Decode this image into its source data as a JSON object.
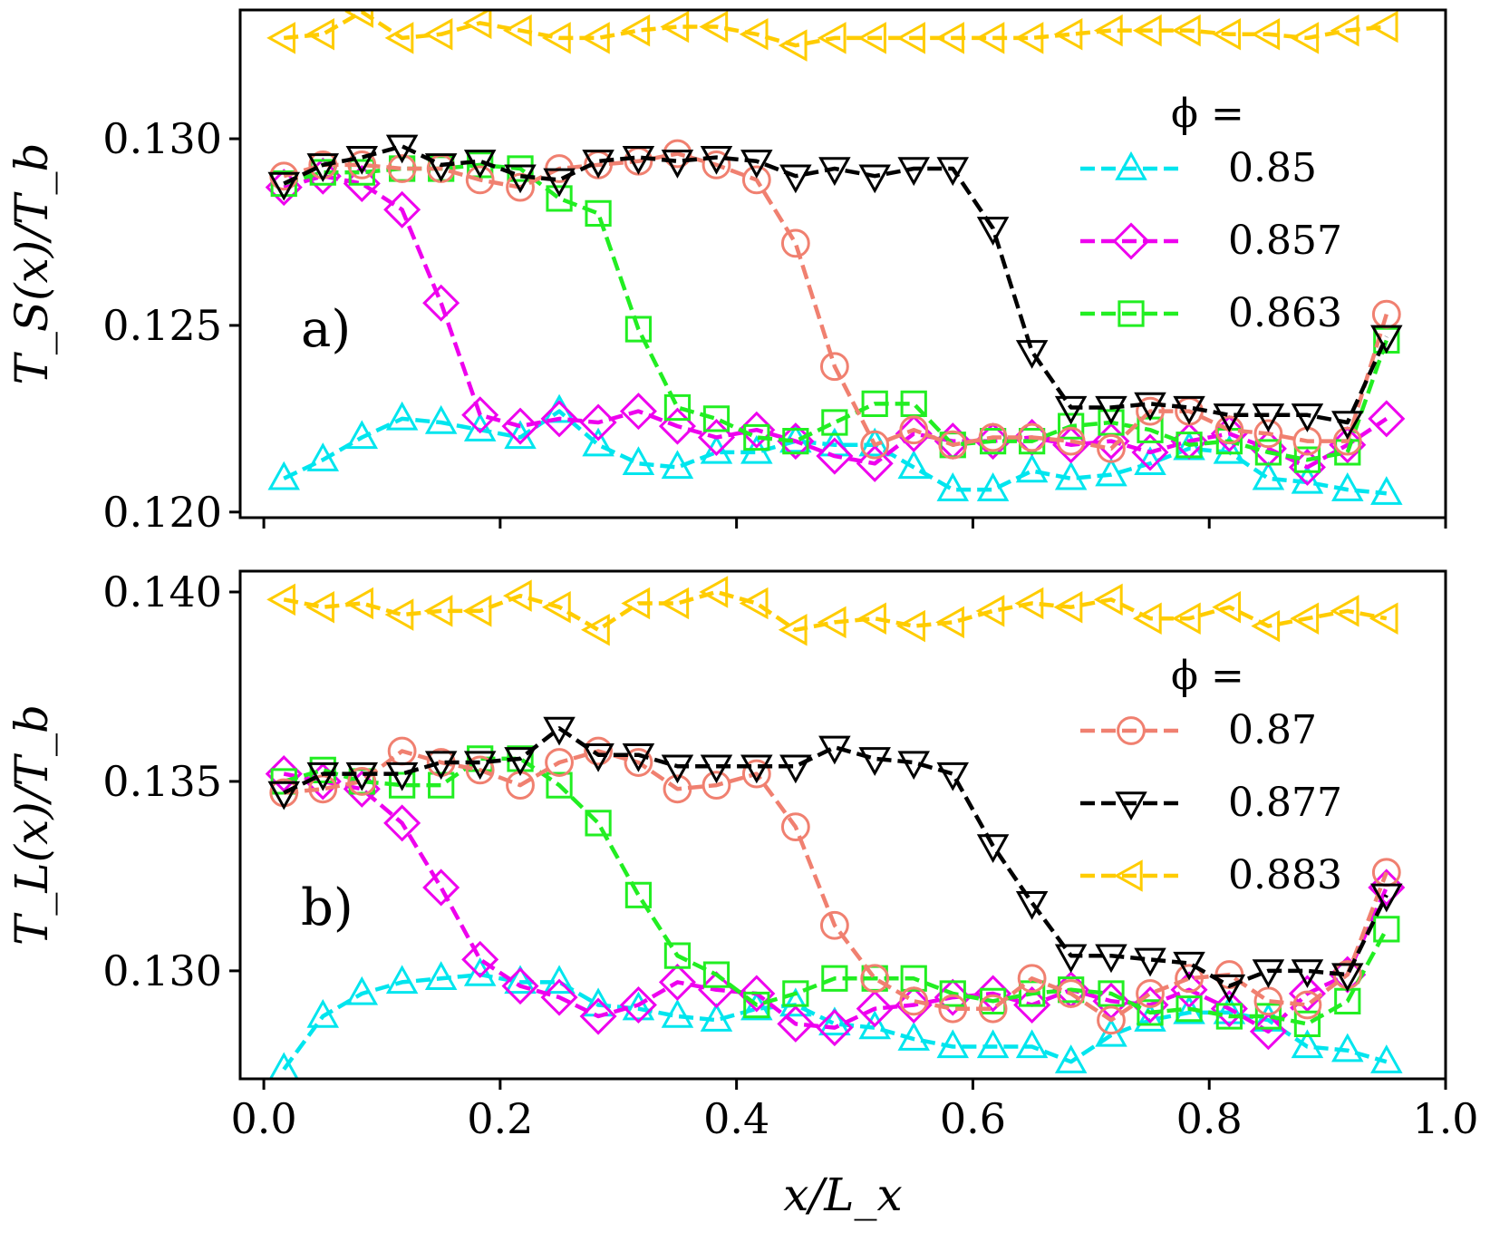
{
  "chart_data": [
    {
      "type": "line",
      "panel": "a)",
      "ylabel": "T_S(x)/T_b",
      "xlabel": "",
      "xlim": [
        -0.02,
        1.0
      ],
      "ylim": [
        0.11985,
        0.13345
      ],
      "yticks": [
        0.12,
        0.125,
        0.13
      ],
      "ytick_labels": [
        "0.120",
        "0.125",
        "0.130"
      ],
      "xticks": [
        0.0,
        0.2,
        0.4,
        0.6,
        0.8,
        1.0
      ],
      "xtick_labels": [],
      "legend": {
        "placement": "right",
        "header": "ϕ =",
        "entries": [
          "0.85",
          "0.857",
          "0.863"
        ]
      },
      "x": [
        0.017,
        0.05,
        0.083,
        0.117,
        0.15,
        0.183,
        0.217,
        0.25,
        0.283,
        0.317,
        0.35,
        0.383,
        0.417,
        0.45,
        0.483,
        0.517,
        0.55,
        0.583,
        0.617,
        0.65,
        0.683,
        0.717,
        0.75,
        0.783,
        0.817,
        0.85,
        0.883,
        0.917,
        0.95
      ],
      "series": [
        {
          "name": "0.85",
          "color": "#00e5ee",
          "marker": "triangle-up",
          "values": [
            0.1209,
            0.1214,
            0.122,
            0.1225,
            0.1224,
            0.1222,
            0.122,
            0.1227,
            0.1218,
            0.1213,
            0.1212,
            0.1216,
            0.1216,
            0.1219,
            0.1218,
            0.1218,
            0.1212,
            0.1206,
            0.1206,
            0.1211,
            0.1209,
            0.121,
            0.1213,
            0.1217,
            0.1216,
            0.1209,
            0.1208,
            0.1206,
            0.1205
          ]
        },
        {
          "name": "0.857",
          "color": "#ee00ee",
          "marker": "diamond",
          "values": [
            0.1287,
            0.129,
            0.1288,
            0.1281,
            0.1256,
            0.1226,
            0.1223,
            0.1225,
            0.1224,
            0.1227,
            0.1223,
            0.122,
            0.1222,
            0.1219,
            0.1215,
            0.1213,
            0.1221,
            0.1219,
            0.1219,
            0.122,
            0.1218,
            0.1219,
            0.1216,
            0.1219,
            0.1221,
            0.1217,
            0.1212,
            0.1218,
            0.1225
          ]
        },
        {
          "name": "0.863",
          "color": "#22ee22",
          "marker": "square",
          "values": [
            0.1288,
            0.1291,
            0.1291,
            0.1292,
            0.1292,
            0.1293,
            0.1292,
            0.1284,
            0.128,
            0.1249,
            0.1228,
            0.1225,
            0.122,
            0.1219,
            0.1224,
            0.1229,
            0.1229,
            0.1218,
            0.1219,
            0.1219,
            0.1223,
            0.1224,
            0.1222,
            0.1218,
            0.1219,
            0.1216,
            0.1214,
            0.1216,
            0.1246
          ]
        },
        {
          "name": "0.87",
          "color": "#f08070",
          "marker": "circle",
          "values": [
            0.129,
            0.1293,
            0.1293,
            0.1292,
            0.1292,
            0.1289,
            0.1287,
            0.1292,
            0.1293,
            0.1294,
            0.1296,
            0.1293,
            0.1289,
            0.1272,
            0.1239,
            0.1218,
            0.1222,
            0.1218,
            0.122,
            0.122,
            0.1219,
            0.1217,
            0.1227,
            0.1227,
            0.1222,
            0.1221,
            0.1219,
            0.1219,
            0.1253
          ]
        },
        {
          "name": "0.877",
          "color": "#000000",
          "marker": "triangle-down",
          "values": [
            0.1288,
            0.1293,
            0.1295,
            0.1298,
            0.1293,
            0.1294,
            0.129,
            0.1289,
            0.1294,
            0.1295,
            0.1294,
            0.1295,
            0.1294,
            0.129,
            0.1292,
            0.129,
            0.1292,
            0.1292,
            0.1276,
            0.1243,
            0.1228,
            0.1228,
            0.1229,
            0.1228,
            0.1226,
            0.1226,
            0.1226,
            0.1224,
            0.1247
          ]
        },
        {
          "name": "0.883",
          "color": "#ffcc00",
          "marker": "triangle-left",
          "values": [
            0.1327,
            0.1328,
            0.1334,
            0.1327,
            0.1328,
            0.1331,
            0.1329,
            0.1327,
            0.1327,
            0.1329,
            0.133,
            0.133,
            0.1328,
            0.1325,
            0.1327,
            0.1327,
            0.1327,
            0.1327,
            0.1327,
            0.1327,
            0.1328,
            0.1329,
            0.1329,
            0.1329,
            0.1328,
            0.1328,
            0.1327,
            0.1329,
            0.133
          ]
        }
      ]
    },
    {
      "type": "line",
      "panel": "b)",
      "ylabel": "T_L(x)/T_b",
      "xlabel": "x/L_x",
      "xlim": [
        -0.02,
        1.0
      ],
      "ylim": [
        0.12715,
        0.14055
      ],
      "yticks": [
        0.13,
        0.135,
        0.14
      ],
      "ytick_labels": [
        "0.130",
        "0.135",
        "0.140"
      ],
      "xticks": [
        0.0,
        0.2,
        0.4,
        0.6,
        0.8,
        1.0
      ],
      "xtick_labels": [
        "0.0",
        "0.2",
        "0.4",
        "0.6",
        "0.8",
        "1.0"
      ],
      "legend": {
        "placement": "right",
        "header": "ϕ =",
        "entries": [
          "0.87",
          "0.877",
          "0.883"
        ]
      },
      "x": [
        0.017,
        0.05,
        0.083,
        0.117,
        0.15,
        0.183,
        0.217,
        0.25,
        0.283,
        0.317,
        0.35,
        0.383,
        0.417,
        0.45,
        0.483,
        0.517,
        0.55,
        0.583,
        0.617,
        0.65,
        0.683,
        0.717,
        0.75,
        0.783,
        0.817,
        0.85,
        0.883,
        0.917,
        0.95
      ],
      "series": [
        {
          "name": "0.85",
          "color": "#00e5ee",
          "marker": "triangle-up",
          "values": [
            0.1274,
            0.1288,
            0.1294,
            0.1297,
            0.1298,
            0.1299,
            0.1297,
            0.1297,
            0.1291,
            0.129,
            0.1288,
            0.1287,
            0.129,
            0.1291,
            0.1286,
            0.1285,
            0.1282,
            0.128,
            0.128,
            0.128,
            0.1276,
            0.1283,
            0.1287,
            0.1289,
            0.1289,
            0.1287,
            0.128,
            0.1279,
            0.1276
          ]
        },
        {
          "name": "0.857",
          "color": "#ee00ee",
          "marker": "diamond",
          "values": [
            0.1352,
            0.135,
            0.1348,
            0.1339,
            0.1322,
            0.1303,
            0.1296,
            0.1293,
            0.1288,
            0.1291,
            0.1297,
            0.1295,
            0.1294,
            0.1286,
            0.1285,
            0.129,
            0.1291,
            0.1293,
            0.1294,
            0.1291,
            0.1295,
            0.1292,
            0.1291,
            0.1295,
            0.129,
            0.1284,
            0.1294,
            0.1299,
            0.1322
          ]
        },
        {
          "name": "0.863",
          "color": "#22ee22",
          "marker": "square",
          "values": [
            0.135,
            0.1353,
            0.135,
            0.1349,
            0.1349,
            0.1356,
            0.1356,
            0.1349,
            0.1339,
            0.132,
            0.1304,
            0.1299,
            0.1291,
            0.1294,
            0.1298,
            0.1298,
            0.1298,
            0.1294,
            0.1292,
            0.1294,
            0.1295,
            0.1294,
            0.1289,
            0.129,
            0.1288,
            0.1288,
            0.1286,
            0.1292,
            0.1311
          ]
        },
        {
          "name": "0.87",
          "color": "#f08070",
          "marker": "circle",
          "values": [
            0.1347,
            0.1348,
            0.135,
            0.1358,
            0.1355,
            0.1353,
            0.1349,
            0.1355,
            0.1358,
            0.1355,
            0.1348,
            0.1349,
            0.1352,
            0.1338,
            0.1312,
            0.1298,
            0.1292,
            0.129,
            0.129,
            0.1298,
            0.1294,
            0.1287,
            0.1294,
            0.1298,
            0.1299,
            0.1292,
            0.1291,
            0.1299,
            0.1326
          ]
        },
        {
          "name": "0.877",
          "color": "#000000",
          "marker": "triangle-down",
          "values": [
            0.1347,
            0.1352,
            0.1352,
            0.1352,
            0.1355,
            0.1355,
            0.1356,
            0.1364,
            0.1357,
            0.1357,
            0.1354,
            0.1354,
            0.1354,
            0.1354,
            0.1359,
            0.1356,
            0.1355,
            0.1352,
            0.1333,
            0.1318,
            0.1304,
            0.1304,
            0.1303,
            0.1302,
            0.1296,
            0.13,
            0.13,
            0.1299,
            0.132
          ]
        },
        {
          "name": "0.883",
          "color": "#ffcc00",
          "marker": "triangle-left",
          "values": [
            0.1398,
            0.1396,
            0.1397,
            0.1394,
            0.1395,
            0.1395,
            0.1399,
            0.1396,
            0.139,
            0.1397,
            0.1397,
            0.14,
            0.1397,
            0.139,
            0.1392,
            0.1393,
            0.1391,
            0.1392,
            0.1395,
            0.1397,
            0.1396,
            0.1398,
            0.1393,
            0.1393,
            0.1396,
            0.1391,
            0.1393,
            0.1395,
            0.1393
          ]
        }
      ]
    }
  ]
}
